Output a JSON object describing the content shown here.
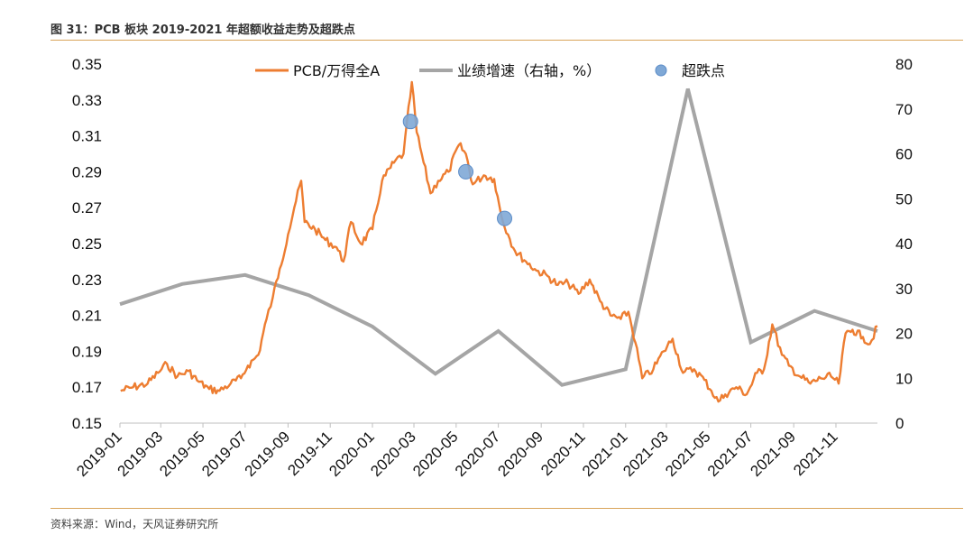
{
  "header": {
    "title": "图 31：PCB 板块 2019-2021 年超额收益走势及超跌点"
  },
  "footer": {
    "source": "资料来源：Wind，天风证券研究所"
  },
  "colors": {
    "pcb": "#ED7D31",
    "growth": "#A5A5A5",
    "dip": "#7FA8D6",
    "rule": "#D9A55A"
  },
  "chart_data": {
    "type": "line",
    "title": "图 31：PCB 板块 2019-2021 年超额收益走势及超跌点",
    "xlabel": "",
    "ylabel": "",
    "ylim": [
      0.15,
      0.35
    ],
    "y_ticks": [
      "0.35",
      "0.33",
      "0.31",
      "0.29",
      "0.27",
      "0.25",
      "0.23",
      "0.21",
      "0.19",
      "0.17",
      "0.15"
    ],
    "y2lim": [
      0,
      80
    ],
    "y2_ticks": [
      "80",
      "70",
      "60",
      "50",
      "40",
      "30",
      "20",
      "10",
      "0"
    ],
    "x_range": [
      "2019-01-01",
      "2021-12-31"
    ],
    "x_ticks": [
      "2019-01",
      "2019-03",
      "2019-05",
      "2019-07",
      "2019-09",
      "2019-11",
      "2020-01",
      "2020-03",
      "2020-05",
      "2020-07",
      "2020-09",
      "2020-11",
      "2021-01",
      "2021-03",
      "2021-05",
      "2021-07",
      "2021-09",
      "2021-11"
    ],
    "legend_position": "top",
    "grid": false,
    "series": [
      {
        "name": "PCB/万得全A",
        "axis": "left",
        "x": [
          "2019-01-02",
          "2019-01-20",
          "2019-02-10",
          "2019-02-25",
          "2019-03-10",
          "2019-03-25",
          "2019-04-10",
          "2019-04-25",
          "2019-05-10",
          "2019-05-25",
          "2019-06-10",
          "2019-06-25",
          "2019-07-05",
          "2019-07-20",
          "2019-08-01",
          "2019-08-10",
          "2019-08-20",
          "2019-09-01",
          "2019-09-10",
          "2019-09-20",
          "2019-09-25",
          "2019-10-10",
          "2019-10-25",
          "2019-11-10",
          "2019-11-20",
          "2019-12-01",
          "2019-12-15",
          "2020-01-01",
          "2020-01-15",
          "2020-02-01",
          "2020-02-15",
          "2020-02-27",
          "2020-03-05",
          "2020-03-15",
          "2020-03-25",
          "2020-04-05",
          "2020-04-20",
          "2020-05-05",
          "2020-05-15",
          "2020-05-25",
          "2020-06-10",
          "2020-06-25",
          "2020-07-05",
          "2020-07-15",
          "2020-07-25",
          "2020-08-10",
          "2020-08-25",
          "2020-09-10",
          "2020-09-25",
          "2020-10-10",
          "2020-10-25",
          "2020-11-10",
          "2020-11-25",
          "2020-12-10",
          "2020-12-25",
          "2021-01-05",
          "2021-01-15",
          "2021-01-25",
          "2021-02-10",
          "2021-02-25",
          "2021-03-10",
          "2021-03-25",
          "2021-04-10",
          "2021-04-25",
          "2021-05-05",
          "2021-05-15",
          "2021-05-25",
          "2021-06-10",
          "2021-06-25",
          "2021-07-10",
          "2021-07-20",
          "2021-08-01",
          "2021-08-15",
          "2021-08-25",
          "2021-09-10",
          "2021-09-25",
          "2021-10-10",
          "2021-10-25",
          "2021-11-05",
          "2021-11-15",
          "2021-11-25",
          "2021-12-10",
          "2021-12-20",
          "2021-12-31"
        ],
        "values": [
          0.168,
          0.17,
          0.172,
          0.178,
          0.183,
          0.176,
          0.179,
          0.173,
          0.169,
          0.168,
          0.172,
          0.175,
          0.182,
          0.188,
          0.208,
          0.22,
          0.236,
          0.255,
          0.27,
          0.285,
          0.262,
          0.258,
          0.252,
          0.248,
          0.24,
          0.262,
          0.25,
          0.258,
          0.285,
          0.295,
          0.3,
          0.34,
          0.312,
          0.295,
          0.278,
          0.285,
          0.29,
          0.305,
          0.3,
          0.283,
          0.288,
          0.286,
          0.266,
          0.255,
          0.246,
          0.24,
          0.235,
          0.232,
          0.227,
          0.228,
          0.222,
          0.23,
          0.218,
          0.21,
          0.208,
          0.212,
          0.195,
          0.175,
          0.18,
          0.19,
          0.197,
          0.178,
          0.18,
          0.174,
          0.168,
          0.162,
          0.166,
          0.17,
          0.166,
          0.178,
          0.18,
          0.205,
          0.188,
          0.182,
          0.176,
          0.172,
          0.175,
          0.176,
          0.172,
          0.2,
          0.202,
          0.198,
          0.194,
          0.204
        ]
      },
      {
        "name": "业绩增速（右轴，%）",
        "axis": "right",
        "x": [
          "2019-01-01",
          "2019-04-01",
          "2019-07-01",
          "2019-10-01",
          "2020-01-01",
          "2020-04-01",
          "2020-07-01",
          "2020-10-01",
          "2021-01-01",
          "2021-04-01",
          "2021-07-01",
          "2021-10-01",
          "2021-12-31"
        ],
        "values": [
          26.5,
          31,
          33,
          28.5,
          21.5,
          11,
          20.5,
          8.5,
          12,
          74.5,
          18,
          25,
          20.5
        ]
      },
      {
        "name": "超跌点",
        "type": "scatter",
        "axis": "left",
        "x": [
          "2020-02-25",
          "2020-05-15",
          "2020-07-10"
        ],
        "values": [
          0.318,
          0.29,
          0.264
        ]
      }
    ]
  }
}
